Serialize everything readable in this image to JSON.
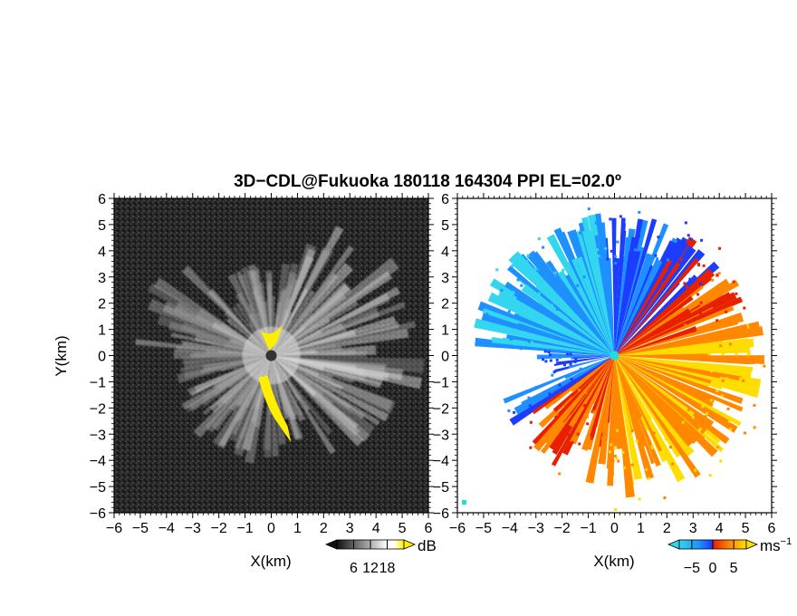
{
  "title": "3D−CDL@Fukuoka 180118 164304 PPI EL=02.0º",
  "colors": {
    "background": "#ffffff",
    "axis": "#000000",
    "snr_dark": "#1a1a1a",
    "snr_light": "#f0f0f0",
    "snr_flag": "#ffee00",
    "vel_neg_strong": "#1c3cff",
    "vel_neg_mid": "#1e90ff",
    "vel_neg_weak": "#33d6ee",
    "vel_pos_weak": "#ffdd00",
    "vel_pos_mid": "#ff8800",
    "vel_pos_strong": "#e82000",
    "vel_center": "#22dddd"
  },
  "chart_data": [
    {
      "type": "heatmap",
      "panel": "left",
      "quantity": "SNR",
      "xlabel": "X(km)",
      "ylabel": "Y(km)",
      "xlim": [
        -6,
        6
      ],
      "ylim": [
        -6,
        6
      ],
      "xticks": [
        "−6",
        "−5",
        "−4",
        "−3",
        "−2",
        "−1",
        "0",
        "1",
        "2",
        "3",
        "4",
        "5",
        "6"
      ],
      "yticks": [
        "6",
        "5",
        "4",
        "3",
        "2",
        "1",
        "0",
        "−1",
        "−2",
        "−3",
        "−4",
        "−5",
        "−6"
      ],
      "colorbar": {
        "unit": "dB",
        "ticks": [
          "6",
          "12",
          "18"
        ],
        "range": [
          0,
          24
        ],
        "colors": [
          "#111111",
          "#ffffff",
          "#ffee00"
        ]
      }
    },
    {
      "type": "heatmap",
      "panel": "right",
      "quantity": "radial velocity",
      "xlabel": "X(km)",
      "ylabel": "",
      "xlim": [
        -6,
        6
      ],
      "ylim": [
        -6,
        6
      ],
      "xticks": [
        "−6",
        "−5",
        "−4",
        "−3",
        "−2",
        "−1",
        "0",
        "1",
        "2",
        "3",
        "4",
        "5",
        "6"
      ],
      "yticks": [
        "6",
        "5",
        "4",
        "3",
        "2",
        "1",
        "0",
        "−1",
        "−2",
        "−3",
        "−4",
        "−5",
        "−6"
      ],
      "colorbar": {
        "unit": "ms",
        "unit_exp": "−1",
        "ticks": [
          "−5",
          "0",
          "5"
        ],
        "range": [
          -8,
          8
        ],
        "colors": [
          "#33d6ee",
          "#1e90ff",
          "#1c3cff",
          "#e82000",
          "#ff8800",
          "#ffdd00"
        ]
      }
    }
  ]
}
